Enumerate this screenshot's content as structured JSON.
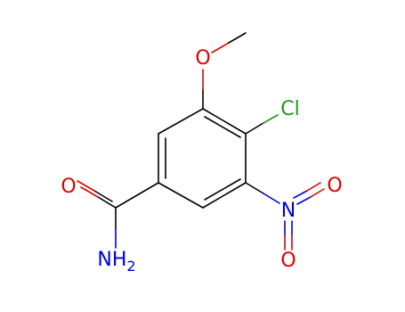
{
  "atoms": [
    {
      "label": "O"
    },
    {
      "label": "Cl"
    },
    {
      "label": "O"
    },
    {
      "label": "N"
    },
    {
      "label": "O"
    },
    {
      "label": "O"
    },
    {
      "label": "NH",
      "subscript": "2"
    }
  ]
}
